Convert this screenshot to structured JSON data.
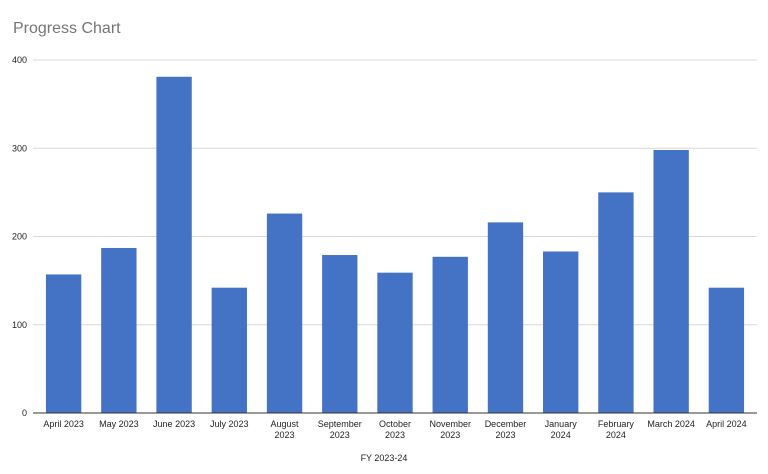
{
  "chart_data": {
    "type": "bar",
    "title": "Progress Chart",
    "xlabel": "FY 2023-24",
    "ylabel": "",
    "ylim": [
      0,
      400
    ],
    "yticks": [
      0,
      100,
      200,
      300,
      400
    ],
    "grid": true,
    "legend": "none",
    "categories": [
      "April 2023",
      "May 2023",
      "June 2023",
      "July 2023",
      "August 2023",
      "September 2023",
      "October 2023",
      "November 2023",
      "December 2023",
      "January 2024",
      "February 2024",
      "March 2024",
      "April 2024"
    ],
    "values": [
      157,
      187,
      381,
      142,
      226,
      179,
      159,
      177,
      216,
      183,
      250,
      298,
      142
    ],
    "bar_color": "#4472c4",
    "grid_color": "#d9d9d9",
    "axis_color": "#333333"
  }
}
